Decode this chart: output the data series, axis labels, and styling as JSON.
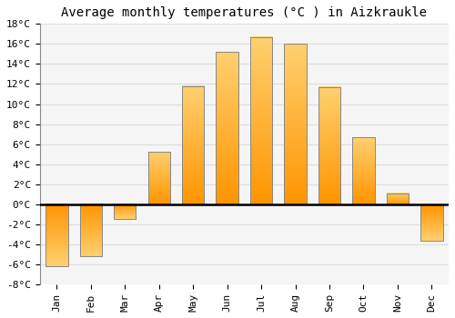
{
  "title": "Average monthly temperatures (°C ) in Aizkraukle",
  "months": [
    "Jan",
    "Feb",
    "Mar",
    "Apr",
    "May",
    "Jun",
    "Jul",
    "Aug",
    "Sep",
    "Oct",
    "Nov",
    "Dec"
  ],
  "values": [
    -6.2,
    -5.2,
    -1.5,
    5.2,
    11.8,
    15.2,
    16.7,
    16.0,
    11.7,
    6.7,
    1.1,
    -3.6
  ],
  "bar_color": "#FFB020",
  "bar_edge_color": "#888888",
  "background_color": "#ffffff",
  "plot_bg_color": "#f5f5f5",
  "grid_color": "#dddddd",
  "ylim": [
    -8,
    18
  ],
  "yticks": [
    -8,
    -6,
    -4,
    -2,
    0,
    2,
    4,
    6,
    8,
    10,
    12,
    14,
    16,
    18
  ],
  "title_fontsize": 10,
  "tick_fontsize": 8,
  "font_family": "monospace"
}
